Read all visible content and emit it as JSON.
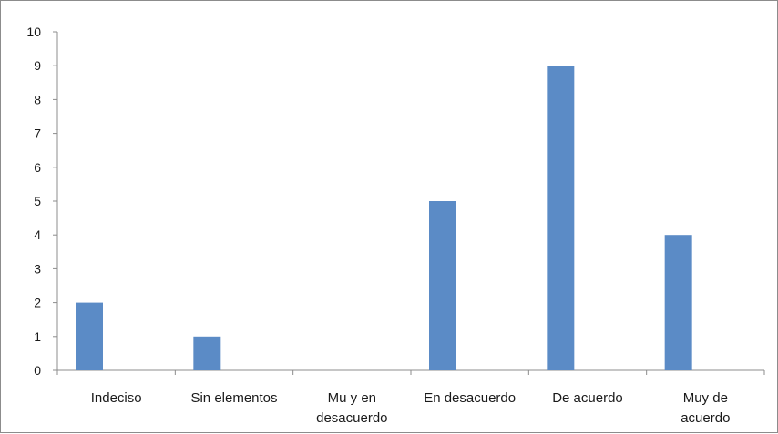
{
  "chart_data": {
    "type": "bar",
    "title": "",
    "xlabel": "",
    "ylabel": "",
    "categories": [
      "Indeciso",
      "Sin elementos",
      "Mu y en desacuerdo",
      "En desacuerdo",
      "De acuerdo",
      "Muy de acuerdo"
    ],
    "category_lines": [
      [
        "Indeciso"
      ],
      [
        "Sin elementos"
      ],
      [
        "Mu y en",
        "desacuerdo"
      ],
      [
        "En desacuerdo"
      ],
      [
        "De acuerdo"
      ],
      [
        "Muy de",
        "acuerdo"
      ]
    ],
    "values": [
      2,
      1,
      0,
      5,
      9,
      4
    ],
    "ylim": [
      0,
      10
    ],
    "yticks": [
      0,
      1,
      2,
      3,
      4,
      5,
      6,
      7,
      8,
      9,
      10
    ],
    "grid": false,
    "legend": "none",
    "bar_color": "#5b8bc6",
    "axis_color": "#8c8c8c"
  }
}
